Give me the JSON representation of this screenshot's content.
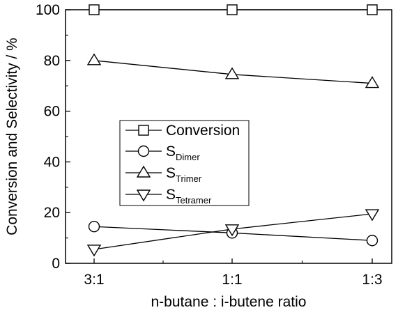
{
  "chart_data": {
    "type": "line",
    "xlabel": "n-butane : i-butene ratio",
    "ylabel": "Conversion and Selectivity / %",
    "categories": [
      "3:1",
      "1:1",
      "1:3"
    ],
    "ylim": [
      0,
      100
    ],
    "yticks": [
      0,
      20,
      40,
      60,
      80,
      100
    ],
    "grid": false,
    "legend_position": "center-left",
    "series": [
      {
        "name": "Conversion",
        "label_main": "Conversion",
        "label_sub": "",
        "marker": "square",
        "values": [
          100,
          100,
          100
        ]
      },
      {
        "name": "SDimer",
        "label_main": "S",
        "label_sub": "Dimer",
        "marker": "circle",
        "values": [
          14.5,
          12,
          9
        ]
      },
      {
        "name": "STrimer",
        "label_main": "S",
        "label_sub": "Trimer",
        "marker": "triangle-up",
        "values": [
          80,
          74.5,
          71
        ]
      },
      {
        "name": "STetramer",
        "label_main": "S",
        "label_sub": "Tetramer",
        "marker": "triangle-down",
        "values": [
          5.5,
          13.5,
          19.5
        ]
      }
    ]
  }
}
